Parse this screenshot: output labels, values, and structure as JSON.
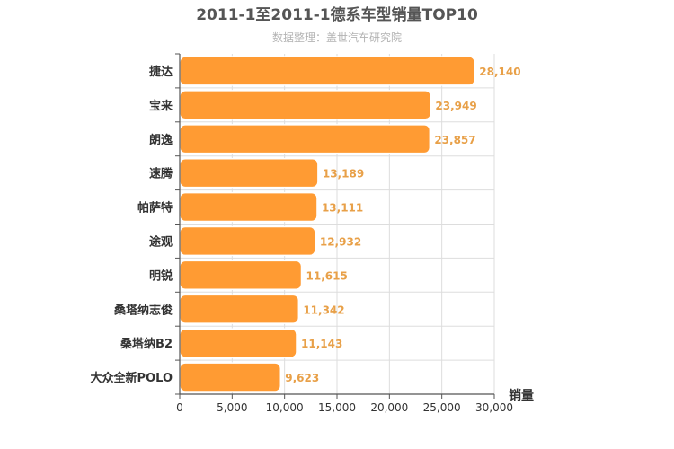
{
  "chart_data": {
    "type": "bar",
    "orientation": "horizontal",
    "title": "2011-1至2011-1德系车型销量TOP10",
    "subtitle": "数据整理：盖世汽车研究院",
    "xlabel": "销量",
    "ylabel": "",
    "categories": [
      "捷达",
      "宝来",
      "朗逸",
      "速腾",
      "帕萨特",
      "途观",
      "明锐",
      "桑塔纳志俊",
      "桑塔纳B2",
      "大众全新POLO"
    ],
    "values": [
      28140,
      23949,
      23857,
      13189,
      13111,
      12932,
      11615,
      11342,
      11143,
      9623
    ],
    "value_labels": [
      "28,140",
      "23,949",
      "23,857",
      "13,189",
      "13,111",
      "12,932",
      "11,615",
      "11,342",
      "11,143",
      "9,623"
    ],
    "xlim": [
      0,
      30000
    ],
    "x_ticks": [
      0,
      5000,
      10000,
      15000,
      20000,
      25000,
      30000
    ],
    "x_tick_labels": [
      "0",
      "5,000",
      "10,000",
      "15,000",
      "20,000",
      "25,000",
      "30,000"
    ],
    "grid": true,
    "legend": "none",
    "bar_color": "#ff9b33"
  }
}
